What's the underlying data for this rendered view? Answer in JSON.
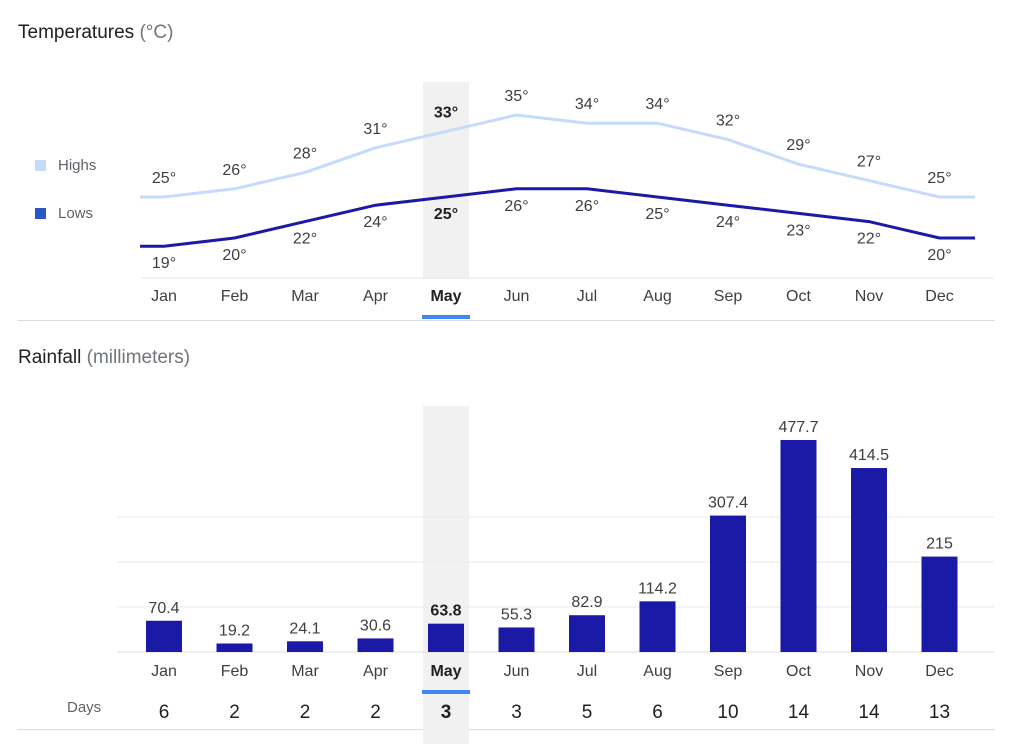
{
  "temperature": {
    "title": "Temperatures",
    "unit": "(°C)",
    "legend": {
      "highs": "Highs",
      "lows": "Lows"
    },
    "colors": {
      "highs": "#c6dafc",
      "lows": "#1a1aa6"
    }
  },
  "rainfall": {
    "title": "Rainfall",
    "unit": "(millimeters)",
    "bar_color": "#1a1aa6",
    "days_label": "Days"
  },
  "selected_month": "May",
  "accent_color": "#4285f4",
  "chart_data": [
    {
      "type": "line",
      "title": "Temperatures (°C)",
      "categories": [
        "Jan",
        "Feb",
        "Mar",
        "Apr",
        "May",
        "Jun",
        "Jul",
        "Aug",
        "Sep",
        "Oct",
        "Nov",
        "Dec"
      ],
      "series": [
        {
          "name": "Highs",
          "values": [
            25,
            26,
            28,
            31,
            33,
            35,
            34,
            34,
            32,
            29,
            27,
            25
          ],
          "labels": [
            "25°",
            "26°",
            "28°",
            "31°",
            "33°",
            "35°",
            "34°",
            "34°",
            "32°",
            "29°",
            "27°",
            "25°"
          ]
        },
        {
          "name": "Lows",
          "values": [
            19,
            20,
            22,
            24,
            25,
            26,
            26,
            25,
            24,
            23,
            22,
            20
          ],
          "labels": [
            "19°",
            "20°",
            "22°",
            "24°",
            "25°",
            "26°",
            "26°",
            "25°",
            "24°",
            "23°",
            "22°",
            "20°"
          ]
        }
      ],
      "legend": "left"
    },
    {
      "type": "bar",
      "title": "Rainfall (millimeters)",
      "categories": [
        "Jan",
        "Feb",
        "Mar",
        "Apr",
        "May",
        "Jun",
        "Jul",
        "Aug",
        "Sep",
        "Oct",
        "Nov",
        "Dec"
      ],
      "values": [
        70.4,
        19.2,
        24.1,
        30.6,
        63.8,
        55.3,
        82.9,
        114.2,
        307.4,
        477.7,
        414.5,
        215
      ],
      "value_labels": [
        "70.4",
        "19.2",
        "24.1",
        "30.6",
        "63.8",
        "55.3",
        "82.9",
        "114.2",
        "307.4",
        "477.7",
        "414.5",
        "215"
      ],
      "days": [
        "6",
        "2",
        "2",
        "2",
        "3",
        "3",
        "5",
        "6",
        "10",
        "14",
        "14",
        "13"
      ],
      "ylim": [
        0,
        480
      ]
    }
  ]
}
